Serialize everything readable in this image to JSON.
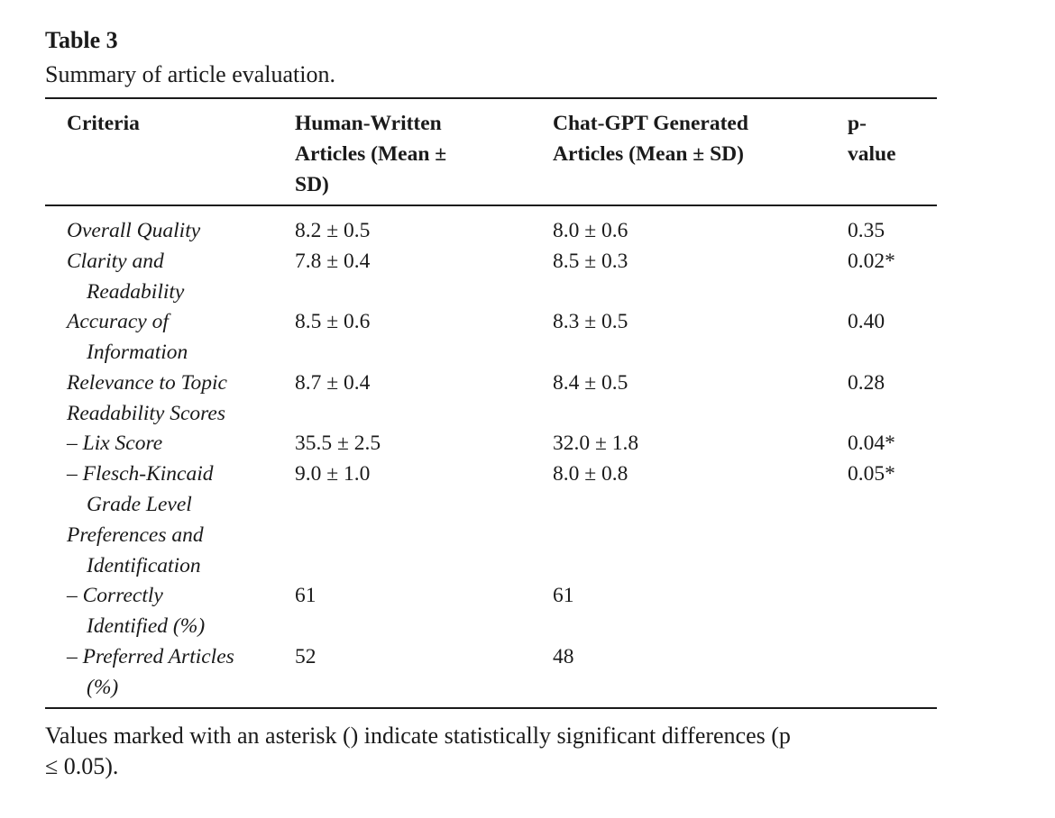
{
  "caption": {
    "label": "Table 3",
    "title": "Summary of article evaluation."
  },
  "header": {
    "criteria": [
      "Criteria"
    ],
    "human": [
      "Human-Written",
      "Articles (Mean ±",
      "SD)"
    ],
    "chatgpt": [
      "Chat-GPT Generated",
      "Articles (Mean ± SD)"
    ],
    "pvalue": [
      "p-",
      "value"
    ]
  },
  "rows": [
    {
      "criteria": [
        "Overall Quality"
      ],
      "human": "8.2 ± 0.5",
      "chatgpt": "8.0 ± 0.6",
      "p": "0.35"
    },
    {
      "criteria": [
        "Clarity and",
        "Readability"
      ],
      "human": "7.8 ± 0.4",
      "chatgpt": "8.5 ± 0.3",
      "p": "0.02*"
    },
    {
      "criteria": [
        "Accuracy of",
        "Information"
      ],
      "human": "8.5 ± 0.6",
      "chatgpt": "8.3 ± 0.5",
      "p": "0.40"
    },
    {
      "criteria": [
        "Relevance to Topic"
      ],
      "human": "8.7 ± 0.4",
      "chatgpt": "8.4 ± 0.5",
      "p": "0.28"
    },
    {
      "criteria": [
        "Readability Scores"
      ],
      "human": "",
      "chatgpt": "",
      "p": ""
    },
    {
      "criteria": [
        "– Lix Score"
      ],
      "human": "35.5 ± 2.5",
      "chatgpt": "32.0 ± 1.8",
      "p": "0.04*"
    },
    {
      "criteria": [
        "– Flesch-Kincaid",
        "Grade Level"
      ],
      "human": "9.0 ± 1.0",
      "chatgpt": "8.0 ± 0.8",
      "p": "0.05*"
    },
    {
      "criteria": [
        "Preferences and",
        "Identification"
      ],
      "human": "",
      "chatgpt": "",
      "p": ""
    },
    {
      "criteria": [
        "– Correctly",
        "Identified (%)"
      ],
      "human": "61",
      "chatgpt": "61",
      "p": ""
    },
    {
      "criteria": [
        "– Preferred Articles",
        "(%)"
      ],
      "human": "52",
      "chatgpt": "48",
      "p": ""
    }
  ],
  "footnote": [
    "Values marked with an asterisk () indicate statistically significant differences (p",
    "≤ 0.05)."
  ]
}
